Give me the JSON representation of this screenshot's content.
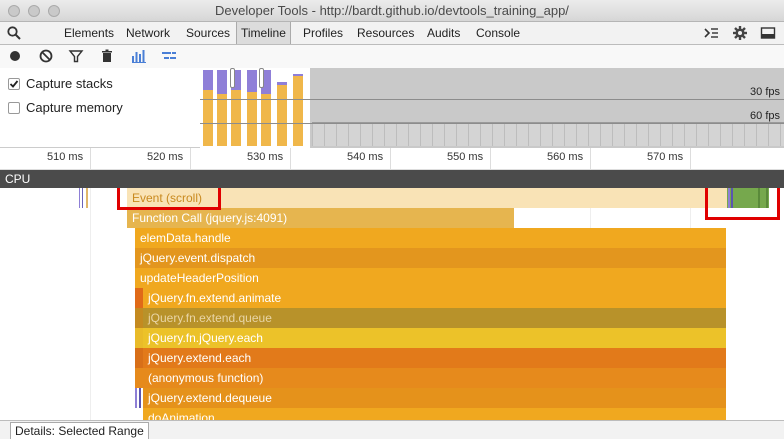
{
  "window": {
    "title": "Developer Tools - http://bardt.github.io/devtools_training_app/"
  },
  "tabs": [
    {
      "label": "Elements"
    },
    {
      "label": "Network"
    },
    {
      "label": "Sources"
    },
    {
      "label": "Timeline"
    },
    {
      "label": "Profiles"
    },
    {
      "label": "Resources"
    },
    {
      "label": "Audits"
    },
    {
      "label": "Console"
    }
  ],
  "selected_tab": "Timeline",
  "icons": {
    "search": "search-icon",
    "drawer": "console-drawer-icon",
    "settings": "gear-icon",
    "dock": "dock-icon",
    "record": "record-icon",
    "clear": "clear-icon",
    "filter": "filter-icon",
    "garbage": "trash-icon",
    "flame": "flame-chart-icon",
    "details": "details-icon"
  },
  "options": {
    "capture_stacks": {
      "label": "Capture stacks",
      "checked": true
    },
    "capture_memory": {
      "label": "Capture memory",
      "checked": false
    }
  },
  "fps": {
    "label_30": "30 fps",
    "label_60": "60 fps"
  },
  "ruler": {
    "ticks": [
      "510 ms",
      "520 ms",
      "530 ms",
      "540 ms",
      "550 ms",
      "560 ms",
      "570 ms"
    ]
  },
  "cpu": {
    "label": "CPU"
  },
  "flame": {
    "frames": [
      {
        "label": "Event (scroll)"
      },
      {
        "label": "Function Call (jquery.js:4091)"
      },
      {
        "label": "elemData.handle"
      },
      {
        "label": "jQuery.event.dispatch"
      },
      {
        "label": "updateHeaderPosition"
      },
      {
        "label": "jQuery.fn.extend.animate"
      },
      {
        "label": "jQuery.fn.extend.queue"
      },
      {
        "label": "jQuery.fn.jQuery.each"
      },
      {
        "label": "jQuery.extend.each"
      },
      {
        "label": "(anonymous function)"
      },
      {
        "label": "jQuery.extend.dequeue"
      },
      {
        "label": "doAnimation"
      }
    ]
  },
  "colors": {
    "event": "#f9e3b6",
    "function_call": "#e6b54f",
    "orange": "#f0a81f",
    "dark_orange": "#e5921b",
    "deep_orange": "#e27a1a",
    "yellow": "#ecc229",
    "muted": "#b8922a",
    "highlight": "#e00000",
    "green": "#76a84d",
    "purple": "#8e7fd6"
  },
  "footer": {
    "drawer_tab": "Details: Selected Range"
  }
}
